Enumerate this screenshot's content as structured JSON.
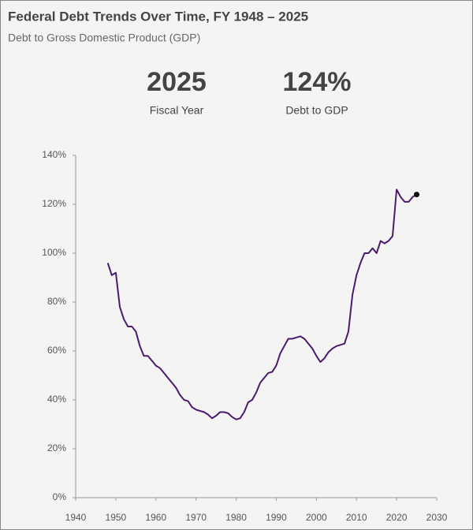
{
  "chart_data": {
    "type": "line",
    "title": "Federal Debt Trends Over Time, FY 1948 – 2025",
    "subtitle": "Debt to Gross Domestic Product (GDP)",
    "highlights": [
      {
        "value": "2025",
        "label": "Fiscal Year"
      },
      {
        "value": "124%",
        "label": "Debt to GDP"
      }
    ],
    "x": [
      1948,
      1949,
      1950,
      1951,
      1952,
      1953,
      1954,
      1955,
      1956,
      1957,
      1958,
      1959,
      1960,
      1961,
      1962,
      1963,
      1964,
      1965,
      1966,
      1967,
      1968,
      1969,
      1970,
      1971,
      1972,
      1973,
      1974,
      1975,
      1976,
      1977,
      1978,
      1979,
      1980,
      1981,
      1982,
      1983,
      1984,
      1985,
      1986,
      1987,
      1988,
      1989,
      1990,
      1991,
      1992,
      1993,
      1994,
      1995,
      1996,
      1997,
      1998,
      1999,
      2000,
      2001,
      2002,
      2003,
      2004,
      2005,
      2006,
      2007,
      2008,
      2009,
      2010,
      2011,
      2012,
      2013,
      2014,
      2015,
      2016,
      2017,
      2018,
      2019,
      2020,
      2021,
      2022,
      2023,
      2024,
      2025
    ],
    "values": [
      96,
      91,
      92,
      78,
      73,
      70,
      70,
      68,
      62,
      58,
      58,
      56,
      54,
      53,
      51,
      49,
      47,
      45,
      42,
      40,
      39.5,
      37,
      36,
      35.5,
      35,
      34,
      32.5,
      33.5,
      35,
      35,
      34.5,
      33,
      32,
      32.5,
      35,
      39,
      40,
      43,
      47,
      49,
      51,
      51.5,
      54,
      59,
      62,
      65,
      65,
      65.5,
      66,
      65,
      63,
      61,
      58,
      55.5,
      57,
      59.5,
      61,
      62,
      62.5,
      63,
      68,
      83,
      91,
      96,
      100,
      100,
      102,
      100,
      105,
      104,
      105,
      107,
      126,
      123,
      121,
      121,
      123,
      124
    ],
    "color": "#4b1a6e",
    "last_marker_color": "#111111",
    "xlim": [
      1940,
      2030
    ],
    "xticks": [
      1940,
      1950,
      1960,
      1970,
      1980,
      1990,
      2000,
      2010,
      2020,
      2030
    ],
    "ylim": [
      0,
      140
    ],
    "yticks": [
      {
        "value": 0,
        "label": "0%"
      },
      {
        "value": 20,
        "label": "20%"
      },
      {
        "value": 40,
        "label": "40%"
      },
      {
        "value": 60,
        "label": "60%"
      },
      {
        "value": 80,
        "label": "80%"
      },
      {
        "value": 100,
        "label": "100%"
      },
      {
        "value": 120,
        "label": "120%"
      },
      {
        "value": 140,
        "label": "140%"
      }
    ],
    "grid": false
  }
}
